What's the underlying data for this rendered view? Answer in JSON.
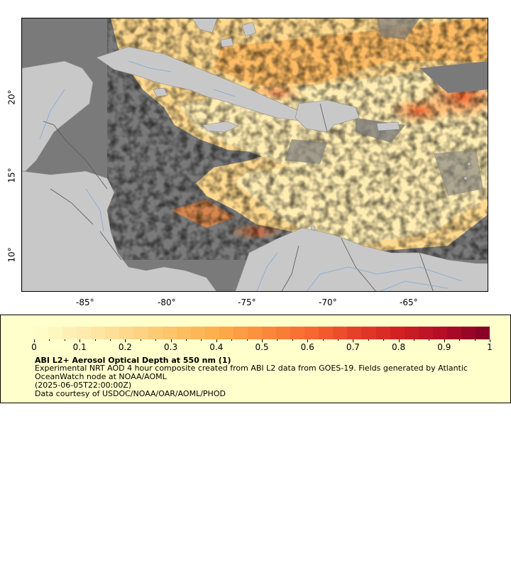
{
  "map": {
    "longitude_ticks": [
      "-85°",
      "-80°",
      "-75°",
      "-70°",
      "-65°"
    ],
    "latitude_ticks": [
      "10°",
      "15°",
      "20°"
    ],
    "extent": {
      "lon_min": -89,
      "lon_max": -60,
      "lat_min": 8,
      "lat_max": 25.5
    },
    "colors": {
      "ocean": "#7a7a7a",
      "land": "#c8c8c8",
      "rivers": "#7fa7d8",
      "borders": "#808080"
    }
  },
  "legend": {
    "colorbar_ticks": [
      "0",
      "0.1",
      "0.2",
      "0.3",
      "0.4",
      "0.5",
      "0.6",
      "0.7",
      "0.8",
      "0.9",
      "1"
    ],
    "colorbar_range": [
      0,
      1
    ],
    "colorbar_colors": [
      "#ffffcc",
      "#ffedb0",
      "#fed98e",
      "#fec468",
      "#fdae4a",
      "#fc8d3c",
      "#f86b30",
      "#e8412a",
      "#d31f23",
      "#b20c26",
      "#800026"
    ],
    "title": "ABI L2+ Aerosol Optical Depth at 550 nm (1)",
    "description_line1": "Experimental NRT AOD 4 hour composite created from ABI L2 data from GOES-19. Fields generated by Atlantic OceanWatch node at NOAA/AOML",
    "timestamp": "(2025-06-05T22:00:00Z)",
    "credit": "Data courtesy of USDOC/NOAA/OAR/AOML/PHOD"
  }
}
